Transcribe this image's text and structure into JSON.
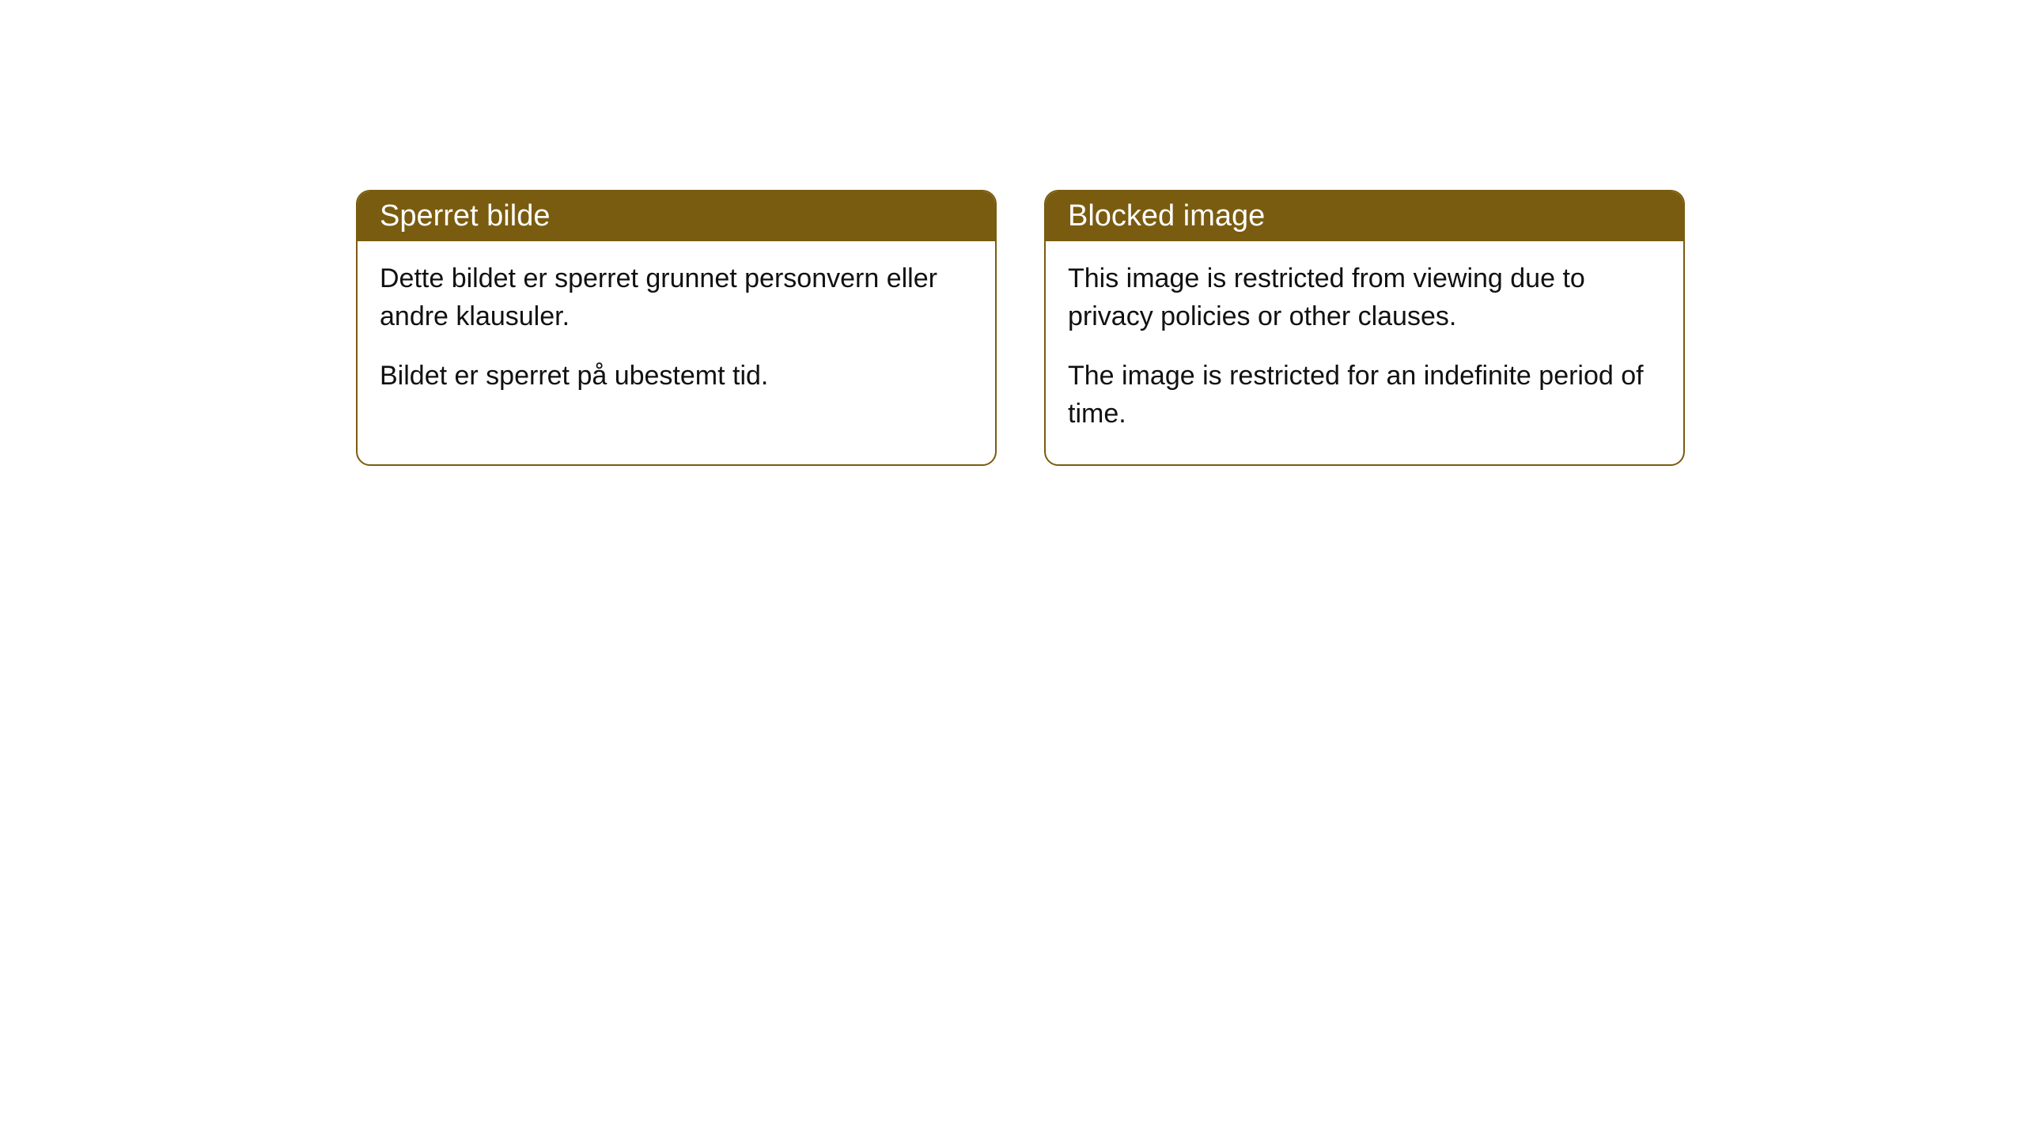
{
  "cards": [
    {
      "title": "Sperret bilde",
      "paragraph1": "Dette bildet er sperret grunnet personvern eller andre klausuler.",
      "paragraph2": "Bildet er sperret på ubestemt tid."
    },
    {
      "title": "Blocked image",
      "paragraph1": "This image is restricted from viewing due to privacy policies or other clauses.",
      "paragraph2": "The image is restricted for an indefinite period of time."
    }
  ],
  "style": {
    "header_bg": "#7a5c10",
    "header_text_color": "#ffffff",
    "border_color": "#7a5c10",
    "body_bg": "#ffffff",
    "body_text_color": "#111111",
    "border_radius": 18,
    "title_fontsize": 38,
    "body_fontsize": 34
  }
}
